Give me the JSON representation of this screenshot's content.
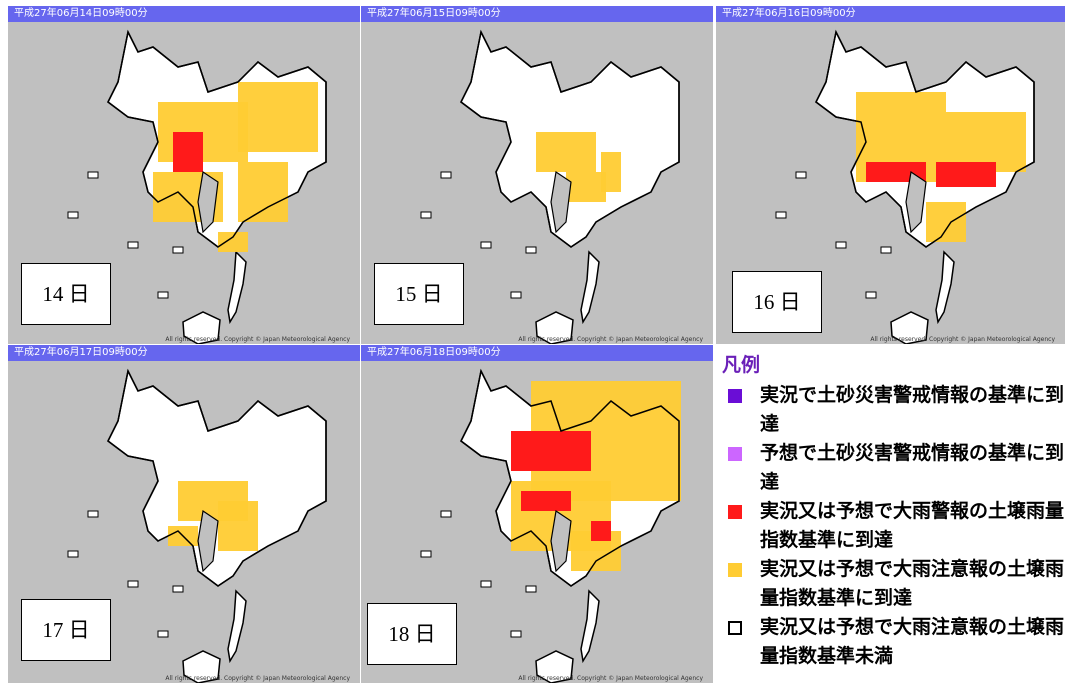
{
  "panels": [
    {
      "header": "平成27年06月14日09時00分",
      "day": "14 日",
      "credit": "All rights reserved. Copyright © Japan Meteorological Agency"
    },
    {
      "header": "平成27年06月15日09時00分",
      "day": "15 日",
      "credit": "All rights reserved. Copyright © Japan Meteorological Agency"
    },
    {
      "header": "平成27年06月16日09時00分",
      "day": "16 日",
      "credit": "All rights reserved. Copyright © Japan Meteorological Agency"
    },
    {
      "header": "平成27年06月17日09時00分",
      "day": "17 日",
      "credit": "All rights reserved. Copyright © Japan Meteorological Agency"
    },
    {
      "header": "平成27年06月18日09時00分",
      "day": "18 日",
      "credit": "All rights reserved. Copyright © Japan Meteorological Agency"
    }
  ],
  "legend": {
    "title": "凡例",
    "items": [
      {
        "label": "実況で土砂災害警戒情報の基準に到達",
        "color": "#6a0dd6"
      },
      {
        "label": "予想で土砂災害警戒情報の基準に到達",
        "color": "#cc66ff"
      },
      {
        "label": "実況又は予想で大雨警報の土壌雨量指数基準に到達",
        "color": "#ff1a1a"
      },
      {
        "label": "実況又は予想で大雨注意報の土壌雨量指数基準に到達",
        "color": "#ffcc33"
      },
      {
        "label": "実況又は予想で大雨注意報の土壌雨量指数基準未満",
        "color": "#ffffff"
      }
    ]
  }
}
